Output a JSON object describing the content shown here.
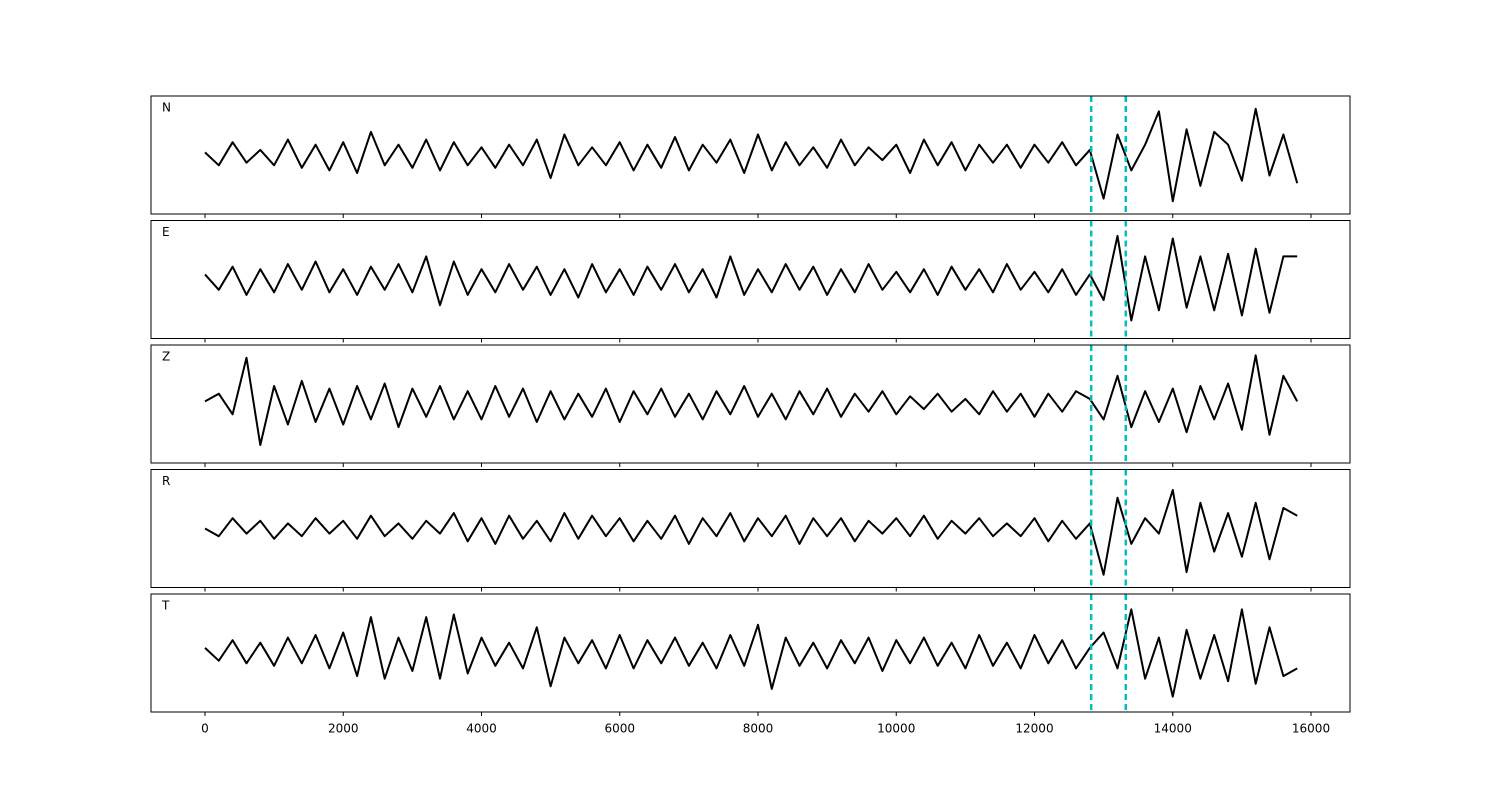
{
  "chart_data": {
    "type": "line",
    "x": [
      0,
      200,
      400,
      600,
      800,
      1000,
      1200,
      1400,
      1600,
      1800,
      2000,
      2200,
      2400,
      2600,
      2800,
      3000,
      3200,
      3400,
      3600,
      3800,
      4000,
      4200,
      4400,
      4600,
      4800,
      5000,
      5200,
      5400,
      5600,
      5800,
      6000,
      6200,
      6400,
      6600,
      6800,
      7000,
      7200,
      7400,
      7600,
      7800,
      8000,
      8200,
      8400,
      8600,
      8800,
      9000,
      9200,
      9400,
      9600,
      9800,
      10000,
      10200,
      10400,
      10600,
      10800,
      11000,
      11200,
      11400,
      11600,
      11800,
      12000,
      12200,
      12400,
      12600,
      12800,
      13000,
      13200,
      13400,
      13600,
      13800,
      14000,
      14200,
      14400,
      14600,
      14800,
      15000,
      15200,
      15400,
      15600,
      15800
    ],
    "series": [
      {
        "name": "N",
        "color": "#000000",
        "values": [
          0.05,
          -0.2,
          0.25,
          -0.15,
          0.1,
          -0.2,
          0.3,
          -0.25,
          0.2,
          -0.3,
          0.25,
          -0.35,
          0.45,
          -0.2,
          0.2,
          -0.25,
          0.3,
          -0.3,
          0.25,
          -0.2,
          0.15,
          -0.25,
          0.2,
          -0.2,
          0.3,
          -0.45,
          0.4,
          -0.2,
          0.15,
          -0.2,
          0.25,
          -0.3,
          0.2,
          -0.25,
          0.35,
          -0.3,
          0.2,
          -0.15,
          0.3,
          -0.35,
          0.4,
          -0.3,
          0.25,
          -0.2,
          0.15,
          -0.25,
          0.3,
          -0.2,
          0.15,
          -0.1,
          0.2,
          -0.35,
          0.3,
          -0.2,
          0.25,
          -0.3,
          0.2,
          -0.15,
          0.2,
          -0.25,
          0.2,
          -0.15,
          0.25,
          -0.2,
          0.1,
          -0.85,
          0.4,
          -0.3,
          0.2,
          0.85,
          -0.9,
          0.5,
          -0.6,
          0.45,
          0.2,
          -0.5,
          0.9,
          -0.4,
          0.4,
          -0.55
        ]
      },
      {
        "name": "E",
        "color": "#000000",
        "values": [
          0.1,
          -0.2,
          0.25,
          -0.3,
          0.2,
          -0.25,
          0.3,
          -0.2,
          0.35,
          -0.25,
          0.2,
          -0.3,
          0.25,
          -0.2,
          0.3,
          -0.25,
          0.45,
          -0.5,
          0.35,
          -0.3,
          0.2,
          -0.25,
          0.3,
          -0.2,
          0.25,
          -0.3,
          0.2,
          -0.35,
          0.3,
          -0.25,
          0.2,
          -0.3,
          0.25,
          -0.2,
          0.3,
          -0.25,
          0.2,
          -0.35,
          0.45,
          -0.3,
          0.2,
          -0.25,
          0.3,
          -0.2,
          0.25,
          -0.3,
          0.2,
          -0.25,
          0.3,
          -0.2,
          0.15,
          -0.25,
          0.2,
          -0.3,
          0.25,
          -0.2,
          0.2,
          -0.25,
          0.3,
          -0.2,
          0.15,
          -0.25,
          0.2,
          -0.3,
          0.1,
          -0.4,
          0.85,
          -0.8,
          0.45,
          -0.6,
          0.8,
          -0.55,
          0.45,
          -0.6,
          0.5,
          -0.7,
          0.6,
          -0.65,
          0.45,
          0.45
        ]
      },
      {
        "name": "Z",
        "color": "#000000",
        "values": [
          0.05,
          0.2,
          -0.2,
          0.9,
          -0.8,
          0.35,
          -0.4,
          0.45,
          -0.35,
          0.3,
          -0.4,
          0.35,
          -0.3,
          0.4,
          -0.45,
          0.3,
          -0.25,
          0.35,
          -0.3,
          0.25,
          -0.3,
          0.35,
          -0.25,
          0.3,
          -0.35,
          0.25,
          -0.3,
          0.2,
          -0.25,
          0.3,
          -0.35,
          0.25,
          -0.2,
          0.3,
          -0.25,
          0.2,
          -0.3,
          0.25,
          -0.2,
          0.35,
          -0.25,
          0.2,
          -0.3,
          0.25,
          -0.2,
          0.3,
          -0.25,
          0.2,
          -0.15,
          0.25,
          -0.2,
          0.15,
          -0.1,
          0.2,
          -0.15,
          0.1,
          -0.2,
          0.25,
          -0.15,
          0.2,
          -0.25,
          0.2,
          -0.15,
          0.25,
          0.1,
          -0.3,
          0.55,
          -0.45,
          0.25,
          -0.35,
          0.3,
          -0.55,
          0.35,
          -0.3,
          0.4,
          -0.5,
          0.95,
          -0.6,
          0.55,
          0.05
        ]
      },
      {
        "name": "R",
        "color": "#000000",
        "values": [
          0.0,
          -0.15,
          0.2,
          -0.1,
          0.15,
          -0.2,
          0.1,
          -0.15,
          0.2,
          -0.1,
          0.15,
          -0.2,
          0.25,
          -0.15,
          0.1,
          -0.2,
          0.15,
          -0.1,
          0.3,
          -0.25,
          0.2,
          -0.3,
          0.25,
          -0.2,
          0.15,
          -0.25,
          0.3,
          -0.2,
          0.25,
          -0.15,
          0.2,
          -0.25,
          0.15,
          -0.2,
          0.25,
          -0.3,
          0.2,
          -0.15,
          0.3,
          -0.25,
          0.2,
          -0.15,
          0.25,
          -0.3,
          0.2,
          -0.15,
          0.2,
          -0.25,
          0.15,
          -0.1,
          0.2,
          -0.15,
          0.25,
          -0.2,
          0.15,
          -0.1,
          0.2,
          -0.15,
          0.1,
          -0.15,
          0.2,
          -0.25,
          0.15,
          -0.2,
          0.1,
          -0.9,
          0.6,
          -0.3,
          0.2,
          -0.1,
          0.75,
          -0.85,
          0.5,
          -0.45,
          0.3,
          -0.55,
          0.5,
          -0.6,
          0.4,
          0.25
        ]
      },
      {
        "name": "T",
        "color": "#000000",
        "values": [
          0.1,
          -0.15,
          0.25,
          -0.2,
          0.2,
          -0.25,
          0.3,
          -0.2,
          0.35,
          -0.3,
          0.4,
          -0.45,
          0.7,
          -0.5,
          0.3,
          -0.35,
          0.7,
          -0.5,
          0.75,
          -0.4,
          0.3,
          -0.25,
          0.2,
          -0.3,
          0.5,
          -0.65,
          0.3,
          -0.2,
          0.25,
          -0.3,
          0.35,
          -0.3,
          0.25,
          -0.2,
          0.3,
          -0.25,
          0.2,
          -0.3,
          0.35,
          -0.25,
          0.55,
          -0.7,
          0.3,
          -0.25,
          0.2,
          -0.3,
          0.25,
          -0.2,
          0.3,
          -0.35,
          0.25,
          -0.2,
          0.3,
          -0.25,
          0.2,
          -0.3,
          0.35,
          -0.25,
          0.2,
          -0.3,
          0.35,
          -0.2,
          0.25,
          -0.3,
          0.1,
          0.4,
          -0.3,
          0.85,
          -0.5,
          0.3,
          -0.85,
          0.45,
          -0.5,
          0.35,
          -0.55,
          0.85,
          -0.6,
          0.5,
          -0.45,
          -0.3
        ]
      }
    ],
    "vlines": [
      12820,
      13320
    ],
    "vline_color": "#00bfbf",
    "xlim": [
      -781,
      16564
    ],
    "ylim": [
      -1.15,
      1.15
    ],
    "xticks": [
      0,
      2000,
      4000,
      6000,
      8000,
      10000,
      12000,
      14000,
      16000
    ]
  }
}
